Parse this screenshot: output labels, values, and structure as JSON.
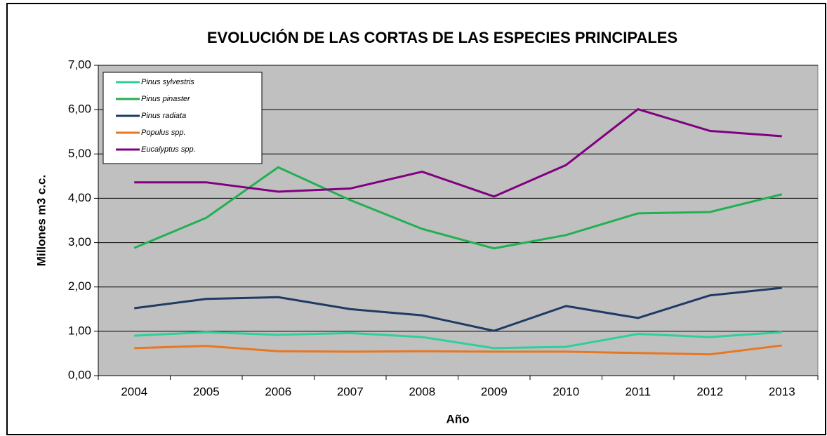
{
  "chart_data": {
    "type": "line",
    "title": "EVOLUCIÓN DE LAS CORTAS DE LAS ESPECIES PRINCIPALES",
    "x_label": "Año",
    "y_label": "Millones m3 c.c.",
    "categories": [
      "2004",
      "2005",
      "2006",
      "2007",
      "2008",
      "2009",
      "2010",
      "2011",
      "2012",
      "2013"
    ],
    "series": [
      {
        "name": "Pinus sylvestris",
        "color": "#2ecf9a",
        "values": [
          0.9,
          0.98,
          0.92,
          0.96,
          0.87,
          0.62,
          0.65,
          0.94,
          0.87,
          0.98
        ]
      },
      {
        "name": "Pinus pinaster",
        "color": "#22b050",
        "values": [
          2.88,
          3.56,
          4.7,
          3.96,
          3.31,
          2.87,
          3.17,
          3.66,
          3.69,
          4.09
        ]
      },
      {
        "name": "Pinus radiata",
        "color": "#1f3a64",
        "values": [
          1.52,
          1.73,
          1.77,
          1.5,
          1.36,
          1.01,
          1.57,
          1.3,
          1.81,
          1.98
        ]
      },
      {
        "name": "Populus spp.",
        "color": "#e87722",
        "values": [
          0.62,
          0.67,
          0.55,
          0.54,
          0.55,
          0.54,
          0.54,
          0.51,
          0.48,
          0.68
        ]
      },
      {
        "name": "Eucalyptus spp.",
        "color": "#800080",
        "values": [
          4.36,
          4.36,
          4.15,
          4.22,
          4.6,
          4.04,
          4.75,
          6.01,
          5.52,
          5.4
        ]
      }
    ],
    "ylim": [
      0,
      7
    ],
    "yticks": [
      {
        "value": 0,
        "label": "0,00"
      },
      {
        "value": 1,
        "label": "1,00"
      },
      {
        "value": 2,
        "label": "2,00"
      },
      {
        "value": 3,
        "label": "3,00"
      },
      {
        "value": 4,
        "label": "4,00"
      },
      {
        "value": 5,
        "label": "5,00"
      },
      {
        "value": 6,
        "label": "6,00"
      },
      {
        "value": 7,
        "label": "7,00"
      }
    ],
    "grid": true,
    "legend": "upper left"
  }
}
